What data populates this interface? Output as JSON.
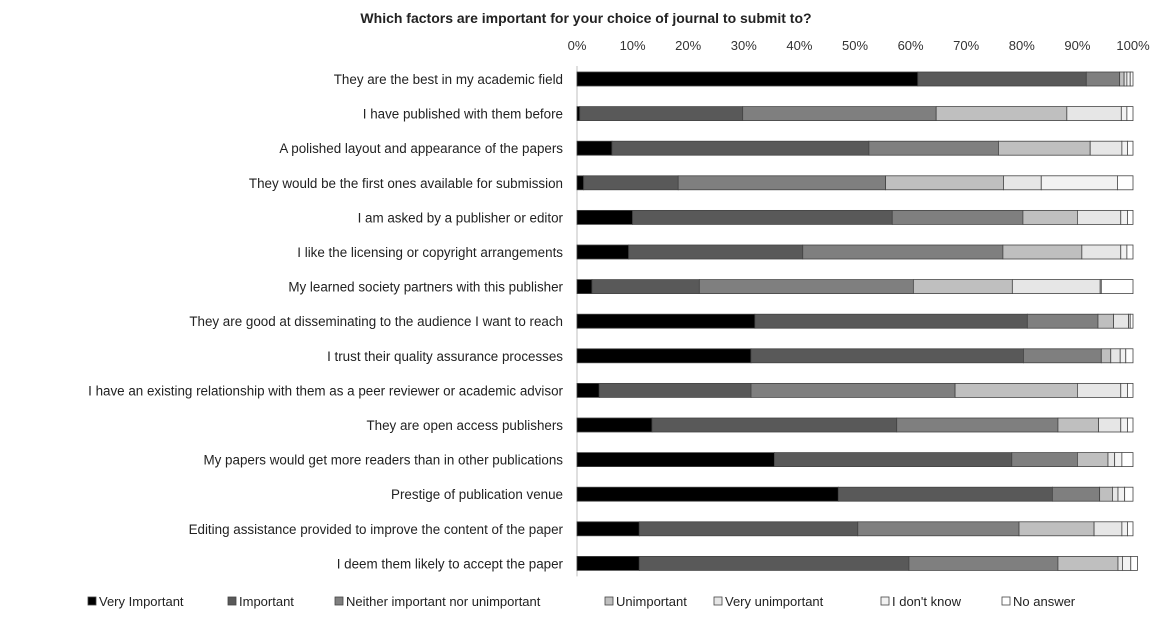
{
  "chart_data": {
    "type": "bar",
    "orientation": "horizontal",
    "stacked": true,
    "percent_stacked": true,
    "title": "Which factors are important for your choice of journal to submit to?",
    "xlim": [
      0,
      100
    ],
    "x_ticks": [
      "0%",
      "10%",
      "20%",
      "30%",
      "40%",
      "50%",
      "60%",
      "70%",
      "80%",
      "90%",
      "100%"
    ],
    "x_axis_position": "top",
    "grid": false,
    "legend_position": "bottom",
    "categories": [
      "They are the best in my academic field",
      "I have published with them before",
      "A polished layout and appearance of the papers",
      "They would be the first ones available for submission",
      "I am asked by a publisher or editor",
      "I like the licensing or copyright arrangements",
      "My learned society partners with this publisher",
      "They are good at disseminating to the audience I want to reach",
      "I trust their quality assurance processes",
      "I have an existing relationship with them as a peer reviewer or academic advisor",
      "They are open access publishers",
      "My papers would get more readers than in other publications",
      "Prestige of publication venue",
      "Editing assistance provided to improve the content of the paper",
      "I deem them likely to accept the paper"
    ],
    "series": [
      {
        "name": "Very Important",
        "color": "#000000",
        "values": [
          61.3,
          0.5,
          6.3,
          1.2,
          10.0,
          9.3,
          2.7,
          32.0,
          31.3,
          4.0,
          13.5,
          35.5,
          47.0,
          11.2,
          11.2
        ]
      },
      {
        "name": "Important",
        "color": "#595959",
        "values": [
          30.3,
          29.3,
          46.2,
          17.0,
          46.7,
          31.3,
          19.3,
          49.0,
          49.0,
          27.3,
          44.0,
          42.7,
          38.5,
          39.3,
          48.5
        ]
      },
      {
        "name": "Neither important nor unimportant",
        "color": "#7f7f7f",
        "values": [
          6.0,
          34.8,
          23.3,
          37.3,
          23.5,
          36.0,
          38.5,
          12.7,
          14.0,
          36.7,
          29.0,
          11.8,
          8.5,
          29.0,
          26.8
        ]
      },
      {
        "name": "Unimportant",
        "color": "#bfbfbf",
        "values": [
          0.8,
          23.5,
          16.5,
          21.2,
          9.8,
          14.2,
          17.8,
          2.8,
          1.7,
          22.0,
          7.3,
          5.5,
          2.3,
          13.5,
          10.8
        ]
      },
      {
        "name": "Very unimportant",
        "color": "#e6e6e6",
        "values": [
          0.5,
          9.8,
          5.7,
          6.8,
          7.8,
          7.0,
          15.8,
          2.7,
          1.7,
          7.8,
          4.0,
          1.2,
          1.0,
          5.0,
          0.8
        ]
      },
      {
        "name": "I don't know",
        "color": "#f2f2f2",
        "values": [
          0.6,
          1.0,
          1.0,
          13.7,
          1.2,
          1.1,
          0.2,
          0.3,
          1.0,
          1.2,
          1.2,
          1.3,
          1.2,
          1.0,
          1.5
        ]
      },
      {
        "name": "No answer",
        "color": "#ffffff",
        "values": [
          0.5,
          1.1,
          1.0,
          2.8,
          1.0,
          1.1,
          5.7,
          0.5,
          1.3,
          1.0,
          1.0,
          2.0,
          1.5,
          1.0,
          1.2
        ]
      }
    ]
  }
}
